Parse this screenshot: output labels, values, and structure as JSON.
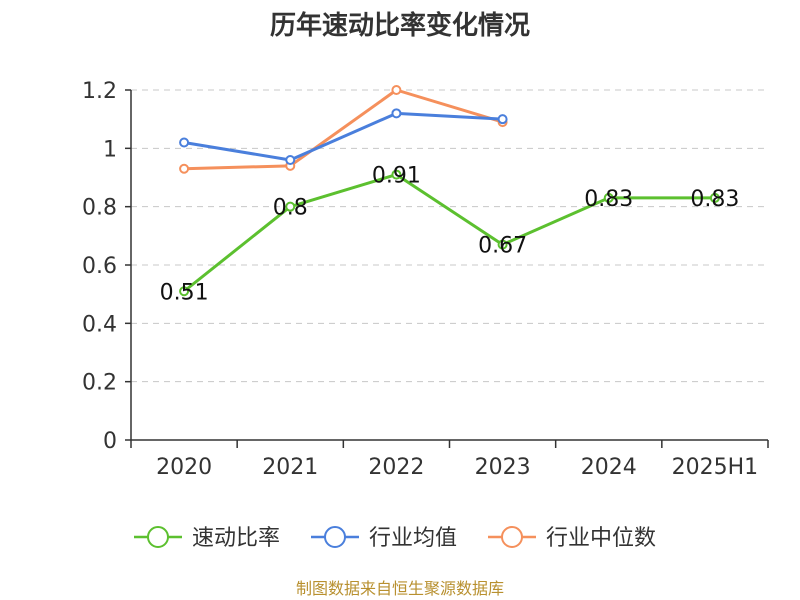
{
  "chart_data": {
    "type": "line",
    "title": "历年速动比率变化情况",
    "categories": [
      "2020",
      "2021",
      "2022",
      "2023",
      "2024",
      "2025H1"
    ],
    "ylim": [
      0,
      1.2
    ],
    "yticks": [
      "0",
      "0.2",
      "0.4",
      "0.6",
      "0.8",
      "1",
      "1.2"
    ],
    "grid": true,
    "legend_position": "bottom",
    "series": [
      {
        "name": "速动比率",
        "color": "#5cc02f",
        "values": [
          0.51,
          0.8,
          0.91,
          0.67,
          0.83,
          0.83
        ],
        "labels": [
          "0.51",
          "0.8",
          "0.91",
          "0.67",
          "0.83",
          "0.83"
        ]
      },
      {
        "name": "行业均值",
        "color": "#4a7fdc",
        "values": [
          1.02,
          0.96,
          1.12,
          1.1,
          null,
          null
        ]
      },
      {
        "name": "行业中位数",
        "color": "#f5905c",
        "values": [
          0.93,
          0.94,
          1.2,
          1.09,
          null,
          null
        ]
      }
    ]
  },
  "source": "制图数据来自恒生聚源数据库"
}
